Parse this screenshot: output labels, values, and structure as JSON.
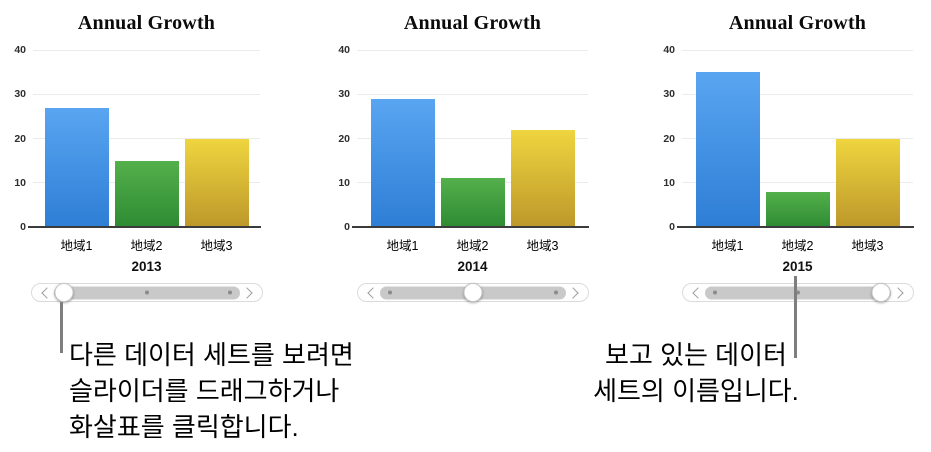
{
  "chart_data": [
    {
      "type": "bar",
      "title": "Annual Growth",
      "categories": [
        "地域1",
        "地域2",
        "地域3"
      ],
      "values": [
        27,
        15,
        20
      ],
      "x_caption": "2013",
      "ylim": [
        0,
        40
      ],
      "yticks": [
        0,
        10,
        20,
        30,
        40
      ],
      "grid": true,
      "legend": "none"
    },
    {
      "type": "bar",
      "title": "Annual Growth",
      "categories": [
        "地域1",
        "地域2",
        "地域3"
      ],
      "values": [
        29,
        11,
        22
      ],
      "x_caption": "2014",
      "ylim": [
        0,
        40
      ],
      "yticks": [
        0,
        10,
        20,
        30,
        40
      ],
      "grid": true,
      "legend": "none"
    },
    {
      "type": "bar",
      "title": "Annual Growth",
      "categories": [
        "地域1",
        "地域2",
        "地域3"
      ],
      "values": [
        35,
        8,
        20
      ],
      "x_caption": "2015",
      "ylim": [
        0,
        40
      ],
      "yticks": [
        0,
        10,
        20,
        30,
        40
      ],
      "grid": true,
      "legend": "none"
    }
  ],
  "bar_palette": [
    {
      "name": "blue",
      "top": "#59a5f1",
      "bottom": "#2e7ed6"
    },
    {
      "name": "green",
      "top": "#54b04b",
      "bottom": "#2e8b33"
    },
    {
      "name": "yellow",
      "top": "#efd53f",
      "bottom": "#bd982a"
    }
  ],
  "sliders": [
    {
      "thumb_position": "left",
      "prev_icon": "chevron-left",
      "next_icon": "chevron-right"
    },
    {
      "thumb_position": "center",
      "prev_icon": "chevron-left",
      "next_icon": "chevron-right"
    },
    {
      "thumb_position": "right",
      "prev_icon": "chevron-left",
      "next_icon": "chevron-right"
    }
  ],
  "callouts": {
    "slider_note": "다른 데이터 세트를 보려면\n슬라이더를 드래그하거나\n화살표를 클릭합니다.",
    "dataset_name_note": "보고 있는 데이터\n세트의 이름입니다."
  },
  "colors": {
    "background": "#ffffff",
    "gridline": "#ebebeb",
    "axis_line": "#3b3b3b",
    "slider_track": "#c9c9c9",
    "callout_line": "#7e7e7e"
  }
}
